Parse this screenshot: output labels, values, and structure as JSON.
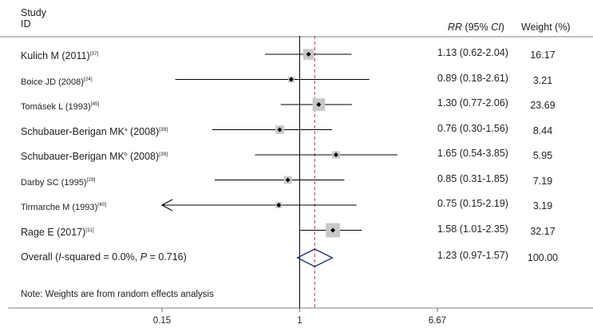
{
  "header": {
    "study_line1": "Study",
    "study_line2": "ID",
    "rr_label_italic": "RR",
    "rr_label_rest": " (95% ",
    "ci_italic": "CI",
    "rr_close": ")",
    "weight_label": "Weight (%)"
  },
  "chart_data": {
    "type": "forest",
    "scale": "log",
    "xlim": [
      0.15,
      6.67
    ],
    "ticks": [
      "0.15",
      "1",
      "6.67"
    ],
    "tick_values": [
      0.15,
      1,
      6.67
    ],
    "null_line": 1,
    "overall_line": 1.23,
    "studies": [
      {
        "name": "Kulich M (2011)",
        "sup": "[37]",
        "rr": 1.13,
        "lo": 0.62,
        "hi": 2.04,
        "rr_text": "1.13 (0.62-2.04)",
        "weight": 16.17,
        "weight_text": "16.17",
        "small": false,
        "arrow_left": false
      },
      {
        "name": "Boice JD (2008)",
        "sup": "[24]",
        "rr": 0.89,
        "lo": 0.18,
        "hi": 2.61,
        "rr_text": "0.89 (0.18-2.61)",
        "weight": 3.21,
        "weight_text": "3.21",
        "small": true,
        "arrow_left": false
      },
      {
        "name": "Tomásek L (1993)",
        "sup": "[45]",
        "rr": 1.3,
        "lo": 0.77,
        "hi": 2.06,
        "rr_text": "1.30 (0.77-2.06)",
        "weight": 23.69,
        "weight_text": "23.69",
        "small": true,
        "arrow_left": false
      },
      {
        "name": "Schubauer-Berigan MK",
        "sup_a": "a",
        "year": " (2008)",
        "sup": "[39]",
        "rr": 0.76,
        "lo": 0.3,
        "hi": 1.56,
        "rr_text": "0.76 (0.30-1.56)",
        "weight": 8.44,
        "weight_text": "8.44",
        "small": false,
        "arrow_left": false
      },
      {
        "name": "Schubauer-Berigan MK",
        "sup_a": "b",
        "year": " (2008)",
        "sup": "[39]",
        "rr": 1.65,
        "lo": 0.54,
        "hi": 3.85,
        "rr_text": "1.65 (0.54-3.85)",
        "weight": 5.95,
        "weight_text": "5.95",
        "small": false,
        "arrow_left": false
      },
      {
        "name": "Darby SC (1995)",
        "sup": "[29]",
        "rr": 0.85,
        "lo": 0.31,
        "hi": 1.85,
        "rr_text": "0.85 (0.31-1.85)",
        "weight": 7.19,
        "weight_text": "7.19",
        "small": true,
        "arrow_left": false
      },
      {
        "name": "Tirmarche M (1993)",
        "sup": "[40]",
        "rr": 0.75,
        "lo": 0.15,
        "hi": 2.19,
        "rr_text": "0.75 (0.15-2.19)",
        "weight": 3.19,
        "weight_text": "3.19",
        "small": true,
        "arrow_left": true
      },
      {
        "name": "Rage E (2017)",
        "sup": "[11]",
        "rr": 1.58,
        "lo": 1.01,
        "hi": 2.35,
        "rr_text": "1.58 (1.01-2.35)",
        "weight": 32.17,
        "weight_text": "32.17",
        "small": false,
        "arrow_left": false
      }
    ],
    "overall": {
      "label_prefix": "Overall (",
      "label_i": "I",
      "label_mid": "-squared = 0.0%, ",
      "label_p": "P",
      "label_end": " = 0.716)",
      "rr": 1.23,
      "lo": 0.97,
      "hi": 1.57,
      "rr_text": "1.23 (0.97-1.57)",
      "weight_text": "100.00"
    },
    "note": "Note: Weights are from random effects analysis",
    "colors": {
      "line": "#000000",
      "box": "#c8c8c8",
      "null": "#000000",
      "overall_line": "#b0305a",
      "diamond": "#1f2a78"
    }
  }
}
